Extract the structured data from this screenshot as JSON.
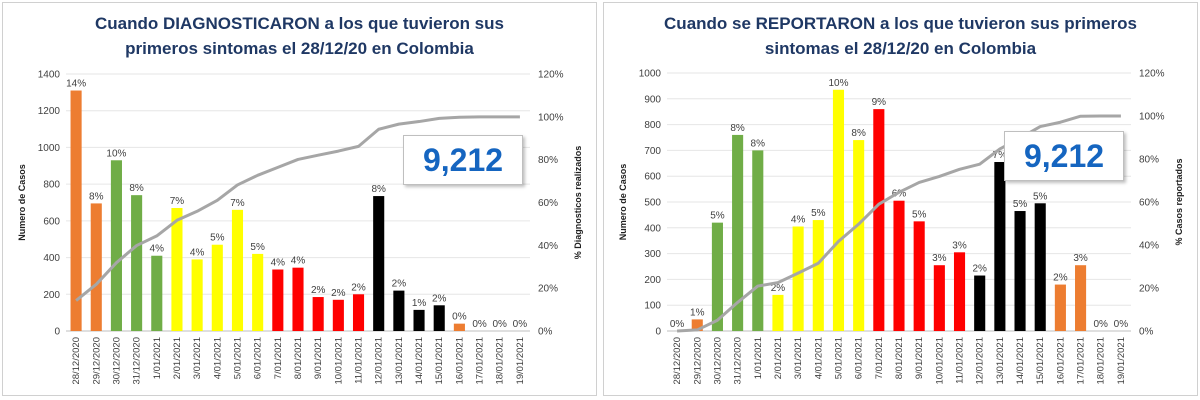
{
  "chart_data": [
    {
      "type": "bar",
      "title_line1": "Cuando DIAGNOSTICARON a los que tuvieron sus",
      "title_line2": "primeros sintomas  el 28/12/20 en Colombia",
      "ylabel": "Numero de Casos",
      "y2label": "% Diagnosticos realizados",
      "ylim": [
        0,
        1400
      ],
      "yticks": [
        0,
        200,
        400,
        600,
        800,
        1000,
        1200,
        1400
      ],
      "y2ticks": [
        "0%",
        "20%",
        "40%",
        "60%",
        "80%",
        "100%",
        "120%"
      ],
      "y2lim": [
        0,
        120
      ],
      "total": "9,212",
      "categories": [
        "28/12/2020",
        "29/12/2020",
        "30/12/2020",
        "31/12/2020",
        "1/01/2021",
        "2/01/2021",
        "3/01/2021",
        "4/01/2021",
        "5/01/2021",
        "6/01/2021",
        "7/01/2021",
        "8/01/2021",
        "9/01/2021",
        "10/01/2021",
        "11/01/2021",
        "12/01/2021",
        "13/01/2021",
        "14/01/2021",
        "15/01/2021",
        "16/01/2021",
        "17/01/2021",
        "18/01/2021",
        "19/01/2021"
      ],
      "values": [
        1310,
        695,
        930,
        740,
        410,
        670,
        390,
        470,
        660,
        420,
        335,
        345,
        185,
        170,
        200,
        735,
        220,
        115,
        140,
        40,
        0,
        0,
        0
      ],
      "pct_labels": [
        "14%",
        "8%",
        "10%",
        "8%",
        "4%",
        "7%",
        "4%",
        "5%",
        "7%",
        "5%",
        "4%",
        "4%",
        "2%",
        "2%",
        "2%",
        "8%",
        "2%",
        "1%",
        "2%",
        "0%",
        "0%",
        "0%",
        "0%"
      ],
      "bar_colors": [
        "#ed7d31",
        "#ed7d31",
        "#70ad47",
        "#70ad47",
        "#70ad47",
        "#ffff00",
        "#ffff00",
        "#ffff00",
        "#ffff00",
        "#ffff00",
        "#ff0000",
        "#ff0000",
        "#ff0000",
        "#ff0000",
        "#ff0000",
        "#000000",
        "#000000",
        "#000000",
        "#000000",
        "#ed7d31",
        "#ed7d31",
        "#ed7d31",
        "#ed7d31"
      ],
      "cumulative_pct": [
        14.2,
        21.8,
        31.9,
        39.9,
        44.4,
        51.7,
        55.9,
        61.0,
        68.2,
        72.7,
        76.4,
        80.1,
        82.1,
        84.0,
        86.2,
        94.2,
        96.6,
        97.8,
        99.3,
        99.8,
        100,
        100,
        100
      ],
      "line_color": "#a6a6a6"
    },
    {
      "type": "bar",
      "title_line1": "Cuando se REPORTARON a los que tuvieron sus primeros",
      "title_line2": "sintomas  el 28/12/20 en Colombia",
      "ylabel": "Numero de Casos",
      "y2label": "% Casos reportados",
      "ylim": [
        0,
        1000
      ],
      "yticks": [
        0,
        100,
        200,
        300,
        400,
        500,
        600,
        700,
        800,
        900,
        1000
      ],
      "y2ticks": [
        "0%",
        "20%",
        "40%",
        "60%",
        "80%",
        "100%",
        "120%"
      ],
      "y2lim": [
        0,
        120
      ],
      "total": "9,212",
      "categories": [
        "28/12/2020",
        "29/12/2020",
        "30/12/2020",
        "31/12/2020",
        "1/01/2021",
        "2/01/2021",
        "3/01/2021",
        "4/01/2021",
        "5/01/2021",
        "6/01/2021",
        "7/01/2021",
        "8/01/2021",
        "9/01/2021",
        "10/01/2021",
        "11/01/2021",
        "12/01/2021",
        "13/01/2021",
        "14/01/2021",
        "15/01/2021",
        "16/01/2021",
        "17/01/2021",
        "18/01/2021",
        "19/01/2021"
      ],
      "values": [
        0,
        45,
        420,
        760,
        700,
        140,
        405,
        430,
        935,
        740,
        860,
        505,
        425,
        255,
        305,
        215,
        655,
        465,
        495,
        180,
        255,
        0,
        0
      ],
      "pct_labels": [
        "0%",
        "1%",
        "5%",
        "8%",
        "8%",
        "2%",
        "4%",
        "5%",
        "10%",
        "8%",
        "9%",
        "6%",
        "5%",
        "3%",
        "3%",
        "2%",
        "7%",
        "5%",
        "5%",
        "2%",
        "3%",
        "0%",
        "0%"
      ],
      "bar_colors": [
        "#ed7d31",
        "#ed7d31",
        "#70ad47",
        "#70ad47",
        "#70ad47",
        "#ffff00",
        "#ffff00",
        "#ffff00",
        "#ffff00",
        "#ffff00",
        "#ff0000",
        "#ff0000",
        "#ff0000",
        "#ff0000",
        "#ff0000",
        "#000000",
        "#000000",
        "#000000",
        "#000000",
        "#ed7d31",
        "#ed7d31",
        "#ed7d31",
        "#ed7d31"
      ],
      "cumulative_pct": [
        0,
        0.5,
        5.0,
        13.3,
        20.9,
        22.5,
        26.9,
        31.5,
        41.7,
        49.7,
        59.0,
        64.5,
        69.1,
        71.9,
        75.2,
        77.6,
        84.7,
        89.7,
        95.1,
        97.1,
        99.9,
        100,
        100
      ],
      "line_color": "#a6a6a6"
    }
  ]
}
